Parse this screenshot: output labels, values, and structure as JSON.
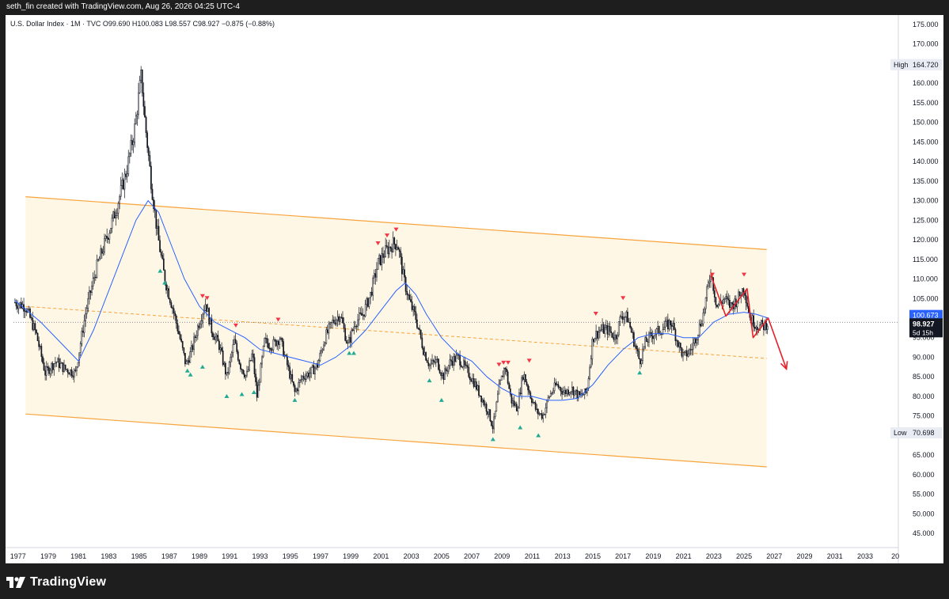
{
  "caption": "seth_fin created with TradingView.com, Aug 26, 2026 04:25 UTC-4",
  "symbol_line": "U.S. Dollar Index · 1M · TVC  O99.690  H100.083  L98.557  C98.927  −0.875 (−0.88%)",
  "footer": {
    "brand": "TradingView",
    "logo": "tradingview-logo-icon"
  },
  "colors": {
    "candle": "#131722",
    "sma": "#2962ff",
    "channel": "#f7a33b",
    "channel_fill": "#fff7e6",
    "marker_top": "#f23645",
    "marker_bottom": "#22ab94",
    "arrow": "#e5202b",
    "price_tag": "#2962ff",
    "last_tag": "#131722"
  },
  "chart_data": {
    "type": "candlestick",
    "symbol": "U.S. Dollar Index",
    "interval": "1M",
    "exchange": "TVC",
    "ohlc": {
      "open": 99.69,
      "high": 100.083,
      "low": 98.557,
      "close": 98.927,
      "change": -0.875,
      "change_pct": -0.88
    },
    "x_ticks": [
      "1977",
      "1979",
      "1981",
      "1983",
      "1985",
      "1987",
      "1989",
      "1991",
      "1993",
      "1995",
      "1997",
      "1999",
      "2001",
      "2003",
      "2005",
      "2007",
      "2009",
      "2011",
      "2013",
      "2015",
      "2017",
      "2019",
      "2021",
      "2023",
      "2025",
      "2027",
      "2029",
      "2031",
      "2033",
      "20"
    ],
    "y_ticks": [
      "175.000",
      "170.000",
      "165.000",
      "160.000",
      "155.000",
      "150.000",
      "145.000",
      "140.000",
      "135.000",
      "130.000",
      "125.000",
      "120.000",
      "115.000",
      "110.000",
      "105.000",
      "100.000",
      "95.000",
      "90.000",
      "85.000",
      "80.000",
      "75.000",
      "70.000",
      "65.000",
      "60.000",
      "55.000",
      "50.000",
      "45.000"
    ],
    "ylim": [
      42,
      177
    ],
    "xlim": [
      1976.7,
      2035.2
    ],
    "price_path": [
      [
        1976.8,
        104
      ],
      [
        1977.5,
        103
      ],
      [
        1978.2,
        96
      ],
      [
        1978.8,
        86
      ],
      [
        1979.5,
        89
      ],
      [
        1980.1,
        87
      ],
      [
        1980.8,
        86
      ],
      [
        1981.5,
        102
      ],
      [
        1982.2,
        113
      ],
      [
        1983.0,
        122
      ],
      [
        1983.5,
        128
      ],
      [
        1984.2,
        138
      ],
      [
        1984.7,
        148
      ],
      [
        1985.15,
        162
      ],
      [
        1985.4,
        150
      ],
      [
        1985.8,
        135
      ],
      [
        1986.2,
        122
      ],
      [
        1986.7,
        110
      ],
      [
        1987.2,
        103
      ],
      [
        1987.7,
        95
      ],
      [
        1988.1,
        88
      ],
      [
        1988.5,
        92
      ],
      [
        1988.9,
        98
      ],
      [
        1989.4,
        104
      ],
      [
        1989.8,
        97
      ],
      [
        1990.3,
        93
      ],
      [
        1990.8,
        85
      ],
      [
        1991.3,
        94
      ],
      [
        1991.7,
        88
      ],
      [
        1992.1,
        85
      ],
      [
        1992.5,
        91
      ],
      [
        1992.8,
        80
      ],
      [
        1993.3,
        94
      ],
      [
        1993.8,
        93
      ],
      [
        1994.3,
        95
      ],
      [
        1994.8,
        88
      ],
      [
        1995.3,
        81
      ],
      [
        1995.8,
        85
      ],
      [
        1996.3,
        86
      ],
      [
        1996.8,
        88
      ],
      [
        1997.3,
        95
      ],
      [
        1997.8,
        99
      ],
      [
        1998.3,
        101
      ],
      [
        1998.8,
        93
      ],
      [
        1999.3,
        99
      ],
      [
        1999.8,
        101
      ],
      [
        2000.3,
        106
      ],
      [
        2000.8,
        114
      ],
      [
        2001.3,
        117
      ],
      [
        2001.8,
        119
      ],
      [
        2002.1,
        119
      ],
      [
        2002.5,
        110
      ],
      [
        2002.9,
        104
      ],
      [
        2003.3,
        100
      ],
      [
        2003.8,
        92
      ],
      [
        2004.2,
        88
      ],
      [
        2004.7,
        89
      ],
      [
        2005.1,
        85
      ],
      [
        2005.6,
        89
      ],
      [
        2006.1,
        90
      ],
      [
        2006.6,
        87
      ],
      [
        2007.1,
        84
      ],
      [
        2007.6,
        80
      ],
      [
        2008.1,
        76
      ],
      [
        2008.4,
        72
      ],
      [
        2008.8,
        82
      ],
      [
        2009.2,
        88
      ],
      [
        2009.6,
        79
      ],
      [
        2010.0,
        77
      ],
      [
        2010.4,
        86
      ],
      [
        2010.9,
        80
      ],
      [
        2011.3,
        76
      ],
      [
        2011.7,
        75
      ],
      [
        2012.1,
        80
      ],
      [
        2012.6,
        83
      ],
      [
        2013.1,
        81
      ],
      [
        2013.6,
        82
      ],
      [
        2014.1,
        80
      ],
      [
        2014.6,
        81
      ],
      [
        2015.0,
        95
      ],
      [
        2015.5,
        97
      ],
      [
        2016.0,
        97
      ],
      [
        2016.5,
        95
      ],
      [
        2016.9,
        101
      ],
      [
        2017.3,
        100
      ],
      [
        2017.8,
        93
      ],
      [
        2018.1,
        89
      ],
      [
        2018.5,
        94
      ],
      [
        2019.0,
        96
      ],
      [
        2019.5,
        97
      ],
      [
        2020.2,
        99
      ],
      [
        2020.6,
        94
      ],
      [
        2021.0,
        90
      ],
      [
        2021.5,
        92
      ],
      [
        2021.9,
        96
      ],
      [
        2022.3,
        101
      ],
      [
        2022.8,
        112
      ],
      [
        2023.2,
        103
      ],
      [
        2023.7,
        105
      ],
      [
        2024.1,
        103
      ],
      [
        2024.6,
        105
      ],
      [
        2025.0,
        108
      ],
      [
        2025.4,
        100
      ],
      [
        2025.9,
        98
      ],
      [
        2026.3,
        98
      ],
      [
        2026.6,
        99
      ]
    ],
    "sma_path": [
      [
        1976.8,
        104.5
      ],
      [
        1978.5,
        99
      ],
      [
        1980.0,
        93
      ],
      [
        1981.0,
        89
      ],
      [
        1982.0,
        97
      ],
      [
        1983.0,
        107
      ],
      [
        1984.0,
        117
      ],
      [
        1984.8,
        125
      ],
      [
        1985.6,
        130
      ],
      [
        1986.3,
        127
      ],
      [
        1987.0,
        120
      ],
      [
        1988.0,
        110
      ],
      [
        1989.0,
        103
      ],
      [
        1990.0,
        99
      ],
      [
        1991.0,
        97
      ],
      [
        1992.0,
        95
      ],
      [
        1993.0,
        92
      ],
      [
        1994.0,
        91
      ],
      [
        1995.0,
        90
      ],
      [
        1996.0,
        89
      ],
      [
        1997.0,
        88
      ],
      [
        1998.0,
        90
      ],
      [
        1999.0,
        93
      ],
      [
        2000.0,
        97
      ],
      [
        2001.0,
        102
      ],
      [
        2002.0,
        107
      ],
      [
        2002.6,
        109
      ],
      [
        2003.3,
        106
      ],
      [
        2004.0,
        101
      ],
      [
        2005.0,
        95
      ],
      [
        2006.0,
        91
      ],
      [
        2007.0,
        89
      ],
      [
        2008.0,
        85
      ],
      [
        2009.0,
        82
      ],
      [
        2010.0,
        80
      ],
      [
        2011.0,
        80
      ],
      [
        2012.0,
        79
      ],
      [
        2013.0,
        79
      ],
      [
        2014.0,
        79.5
      ],
      [
        2015.0,
        83
      ],
      [
        2016.0,
        88
      ],
      [
        2017.0,
        92
      ],
      [
        2018.0,
        95
      ],
      [
        2019.0,
        96
      ],
      [
        2020.0,
        96
      ],
      [
        2021.0,
        95
      ],
      [
        2022.0,
        95
      ],
      [
        2023.0,
        99
      ],
      [
        2024.0,
        101
      ],
      [
        2025.0,
        101.5
      ],
      [
        2025.8,
        101
      ],
      [
        2026.6,
        100
      ]
    ],
    "channel": {
      "upper": [
        [
          1977.5,
          131
        ],
        [
          2026.5,
          117.5
        ]
      ],
      "lower": [
        [
          1977.5,
          75.5
        ],
        [
          2026.5,
          62
        ]
      ],
      "mid": [
        [
          1977.5,
          103
        ],
        [
          2026.5,
          89.7
        ]
      ]
    },
    "arrow_path": [
      [
        2022.8,
        111
      ],
      [
        2023.8,
        100.5
      ],
      [
        2025.2,
        107.5
      ],
      [
        2025.6,
        95
      ],
      [
        2026.6,
        100
      ],
      [
        2027.8,
        87
      ]
    ],
    "markers_top": [
      [
        1989.2,
        105.5
      ],
      [
        1989.5,
        105
      ],
      [
        1991.4,
        98
      ],
      [
        1994.2,
        99.5
      ],
      [
        2000.8,
        119
      ],
      [
        2001.4,
        121
      ],
      [
        2002.0,
        122.5
      ],
      [
        2008.8,
        88
      ],
      [
        2009.1,
        88.5
      ],
      [
        2009.4,
        88.5
      ],
      [
        2010.8,
        89
      ],
      [
        2015.2,
        101
      ],
      [
        2017.0,
        105
      ],
      [
        2022.9,
        111
      ],
      [
        2025.0,
        111
      ]
    ],
    "markers_bottom": [
      [
        1986.4,
        112
      ],
      [
        1986.7,
        109
      ],
      [
        1988.2,
        86.5
      ],
      [
        1988.4,
        85.5
      ],
      [
        1989.2,
        87.5
      ],
      [
        1990.8,
        80
      ],
      [
        1991.8,
        80.5
      ],
      [
        1992.6,
        81
      ],
      [
        1995.3,
        79
      ],
      [
        1998.9,
        91
      ],
      [
        1999.2,
        91
      ],
      [
        2004.2,
        84
      ],
      [
        2005.0,
        79
      ],
      [
        2008.4,
        69
      ],
      [
        2010.2,
        72
      ],
      [
        2011.4,
        70
      ],
      [
        2018.1,
        86
      ]
    ],
    "price_tags": [
      {
        "label": "High",
        "value": "164.720",
        "y": 164.72
      },
      {
        "label": "Low",
        "value": "70.698",
        "y": 70.698
      }
    ],
    "current_tags": [
      {
        "value": "100.673",
        "y": 100.673
      },
      {
        "value": "98.927",
        "y": 98.927,
        "sub": "5d 15h"
      }
    ]
  }
}
